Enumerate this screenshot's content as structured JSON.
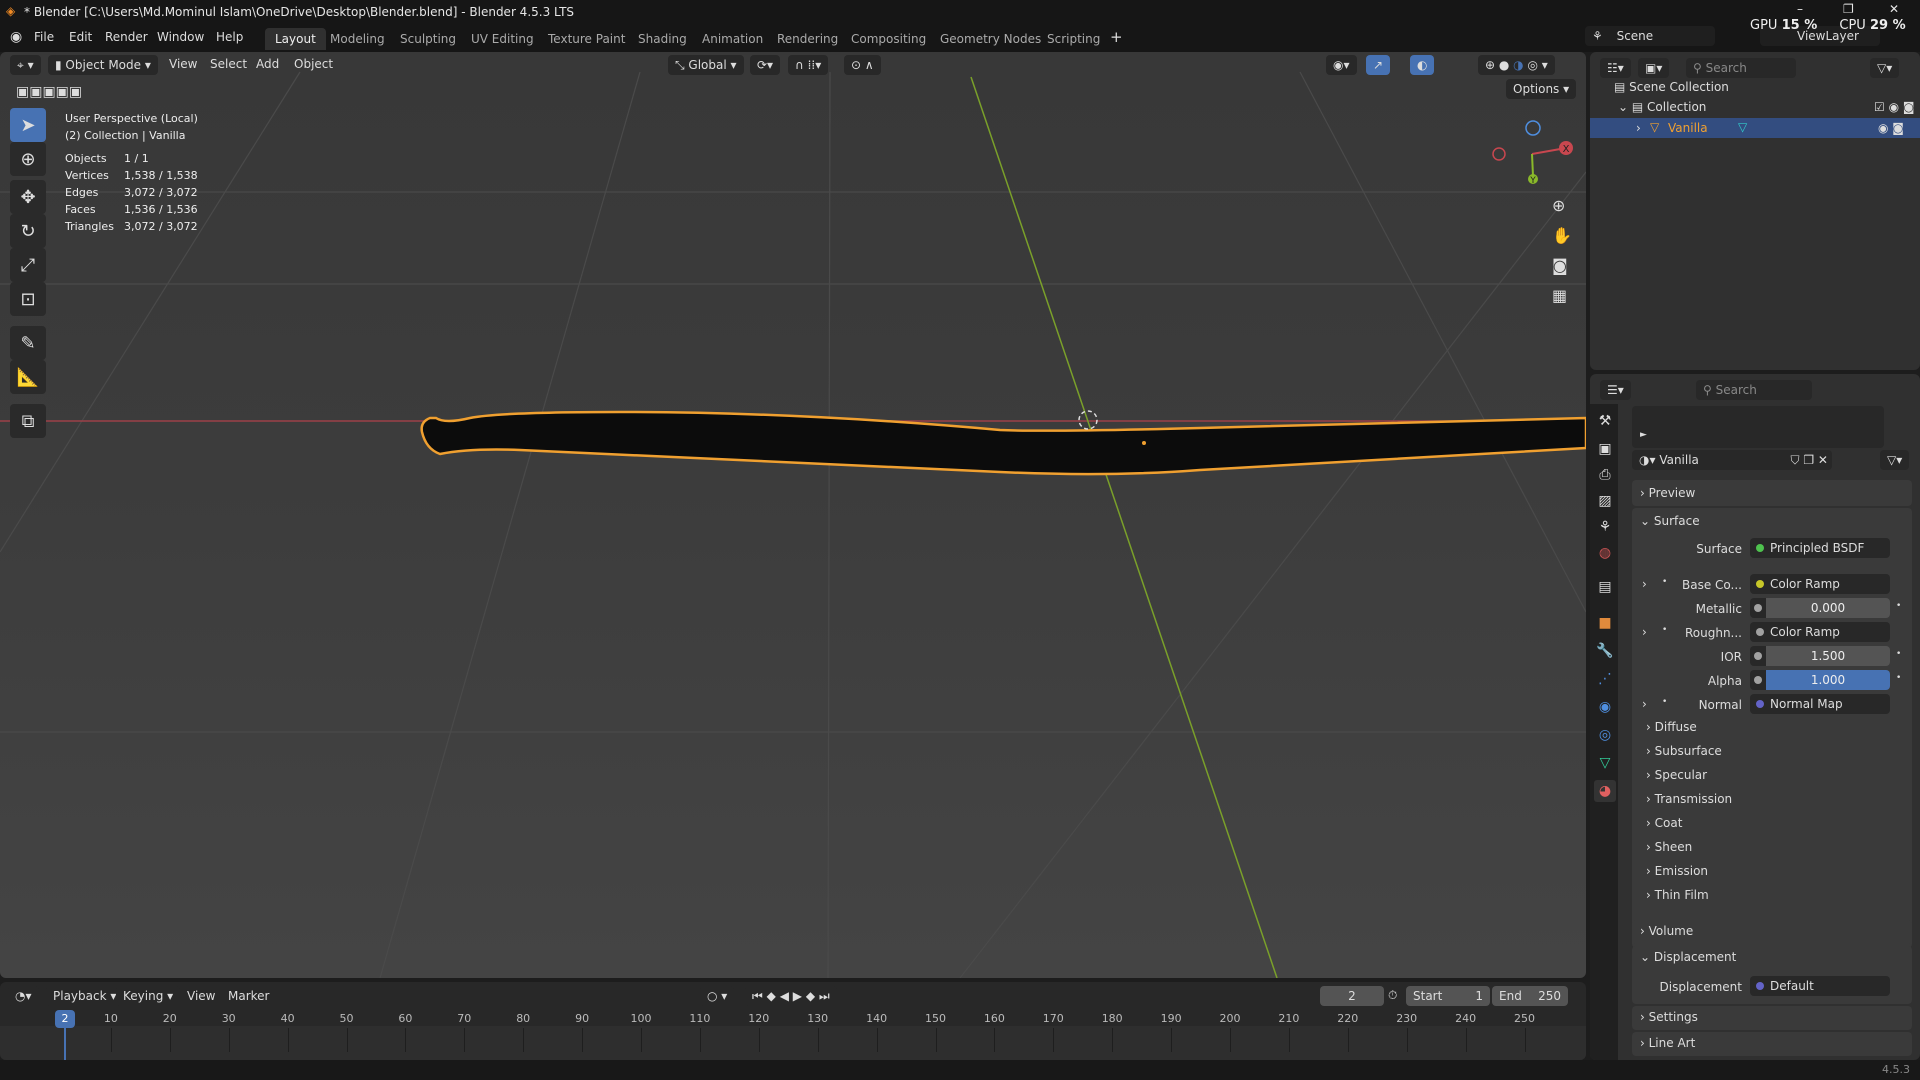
{
  "title": "* Blender [C:\\Users\\Md.Mominul Islam\\OneDrive\\Desktop\\Blender.blend] - Blender 4.5.3 LTS",
  "menus": [
    "File",
    "Edit",
    "Render",
    "Window",
    "Help"
  ],
  "workspaces": [
    "Layout",
    "Modeling",
    "Sculpting",
    "UV Editing",
    "Texture Paint",
    "Shading",
    "Animation",
    "Rendering",
    "Compositing",
    "Geometry Nodes",
    "Scripting"
  ],
  "active_workspace": "Layout",
  "scene": "Scene",
  "view_layer": "ViewLayer",
  "perf": {
    "gpu_label": "GPU",
    "gpu": "15 %",
    "cpu_label": "CPU",
    "cpu": "29 %"
  },
  "viewport": {
    "mode": "Object Mode",
    "menus": [
      "View",
      "Select",
      "Add",
      "Object"
    ],
    "orientation": "Global",
    "options": "Options",
    "info": {
      "line1": "User Perspective (Local)",
      "line2": "(2) Collection | Vanilla"
    },
    "stats": [
      {
        "k": "Objects",
        "v": "1 / 1"
      },
      {
        "k": "Vertices",
        "v": "1,538 / 1,538"
      },
      {
        "k": "Edges",
        "v": "3,072 / 3,072"
      },
      {
        "k": "Faces",
        "v": "1,536 / 1,536"
      },
      {
        "k": "Triangles",
        "v": "3,072 / 3,072"
      }
    ],
    "gizmo": {
      "x": "X",
      "y": "Y"
    },
    "colors": {
      "x_axis": "#c8474f",
      "y_axis": "#8ab92a",
      "selection": "#f0a030",
      "active_tool": "#4772b3"
    }
  },
  "outliner": {
    "search": "Search",
    "items": [
      "Scene Collection",
      "Collection",
      "Vanilla"
    ]
  },
  "properties": {
    "search": "Search",
    "material": "Vanilla",
    "panels": {
      "preview": "Preview",
      "surface": "Surface",
      "volume": "Volume",
      "displacement": "Displacement",
      "settings": "Settings",
      "line_art": "Line Art"
    },
    "surface_rows": [
      {
        "label": "Surface",
        "value": "Principled BSDF",
        "socket": "#4ec24e",
        "type": "link"
      },
      {
        "label": "Base Co...",
        "value": "Color Ramp",
        "socket": "#c7c729",
        "type": "link",
        "expand": true
      },
      {
        "label": "Metallic",
        "value": "0.000",
        "socket": "#a1a1a1",
        "type": "num"
      },
      {
        "label": "Roughn...",
        "value": "Color Ramp",
        "socket": "#a1a1a1",
        "type": "link",
        "expand": true
      },
      {
        "label": "IOR",
        "value": "1.500",
        "socket": "#a1a1a1",
        "type": "num"
      },
      {
        "label": "Alpha",
        "value": "1.000",
        "socket": "#a1a1a1",
        "type": "num",
        "blue": true
      },
      {
        "label": "Normal",
        "value": "Normal Map",
        "socket": "#6363c7",
        "type": "link",
        "expand": true
      }
    ],
    "subpanels": [
      "Diffuse",
      "Subsurface",
      "Specular",
      "Transmission",
      "Coat",
      "Sheen",
      "Emission",
      "Thin Film"
    ],
    "displacement": {
      "label": "Displacement",
      "value": "Default",
      "socket": "#6363c7"
    }
  },
  "timeline": {
    "menus": [
      "Playback",
      "Keying",
      "View",
      "Marker"
    ],
    "current_frame": "2",
    "start_label": "Start",
    "start": "1",
    "end_label": "End",
    "end": "250",
    "ticks": [
      "10",
      "20",
      "30",
      "40",
      "50",
      "60",
      "70",
      "80",
      "90",
      "100",
      "110",
      "120",
      "130",
      "140",
      "150",
      "160",
      "170",
      "180",
      "190",
      "200",
      "210",
      "220",
      "230",
      "240",
      "250"
    ]
  },
  "version": "4.5.3"
}
